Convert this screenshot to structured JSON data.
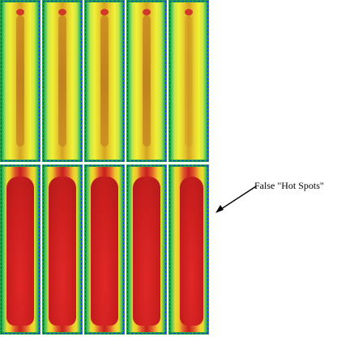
{
  "annotation": {
    "label": "False \"Hot Spots\""
  },
  "colors": {
    "cool": "#2db86a",
    "warm": "#f1f038",
    "hot": "#c81e1e",
    "frame": "#1fa24a",
    "dash": "#1a3fd0"
  }
}
